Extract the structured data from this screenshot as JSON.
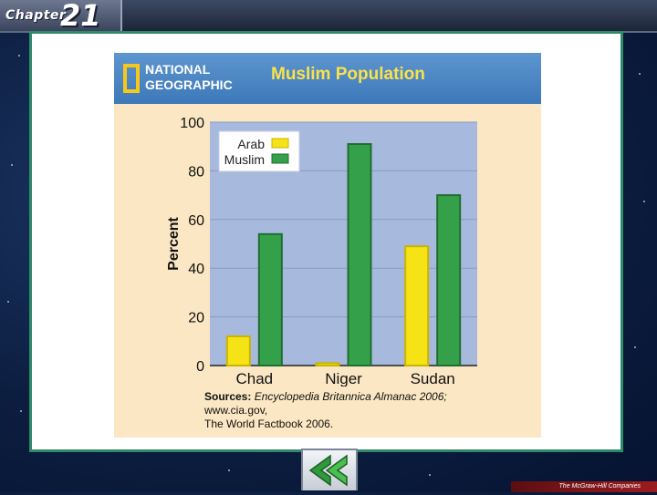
{
  "header": {
    "chapter_label": "Chapter",
    "chapter_number": "21"
  },
  "figure": {
    "logo_line1": "NATIONAL",
    "logo_line2": "GEOGRAPHIC",
    "title": "Muslim Population",
    "sources_label": "Sources:",
    "sources_italic": "Encyclopedia Britannica Almanac 2006;",
    "sources_rest1": " www.cia.gov,",
    "sources_rest2": "The World Factbook 2006."
  },
  "chart_data": {
    "type": "bar",
    "title": "Muslim Population",
    "ylabel": "Percent",
    "xlabel": "",
    "ylim": [
      0,
      100
    ],
    "yticks": [
      0,
      20,
      40,
      60,
      80,
      100
    ],
    "categories": [
      "Chad",
      "Niger",
      "Sudan"
    ],
    "series": [
      {
        "name": "Arab",
        "color": "#f5e316",
        "values": [
          12,
          1,
          49
        ]
      },
      {
        "name": "Muslim",
        "color": "#35a04a",
        "values": [
          54,
          91,
          70
        ]
      }
    ],
    "legend_position": "top-left",
    "plot_background": "#a7b9dd",
    "grid": true
  },
  "footer": {
    "back_icon": "double-chevron-left-icon",
    "brand": "The McGraw-Hill Companies"
  }
}
